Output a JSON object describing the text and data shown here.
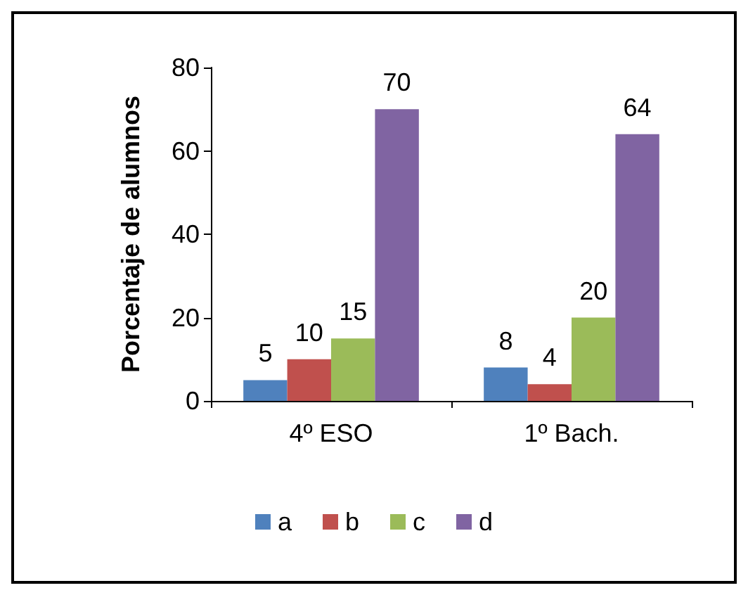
{
  "chart_data": {
    "type": "bar",
    "ylabel": "Porcentaje de alumnos",
    "categories": [
      "4º ESO",
      "1º Bach."
    ],
    "series": [
      {
        "name": "a",
        "color": "#4f81bd",
        "values": [
          5,
          8
        ]
      },
      {
        "name": "b",
        "color": "#c0504d",
        "values": [
          10,
          4
        ]
      },
      {
        "name": "c",
        "color": "#9bbb59",
        "values": [
          15,
          20
        ]
      },
      {
        "name": "d",
        "color": "#8064a2",
        "values": [
          70,
          64
        ]
      }
    ],
    "ylim": [
      0,
      80
    ],
    "yticks": [
      0,
      20,
      40,
      60,
      80
    ],
    "grid": false,
    "legend": "bottom",
    "data_labels": true
  }
}
